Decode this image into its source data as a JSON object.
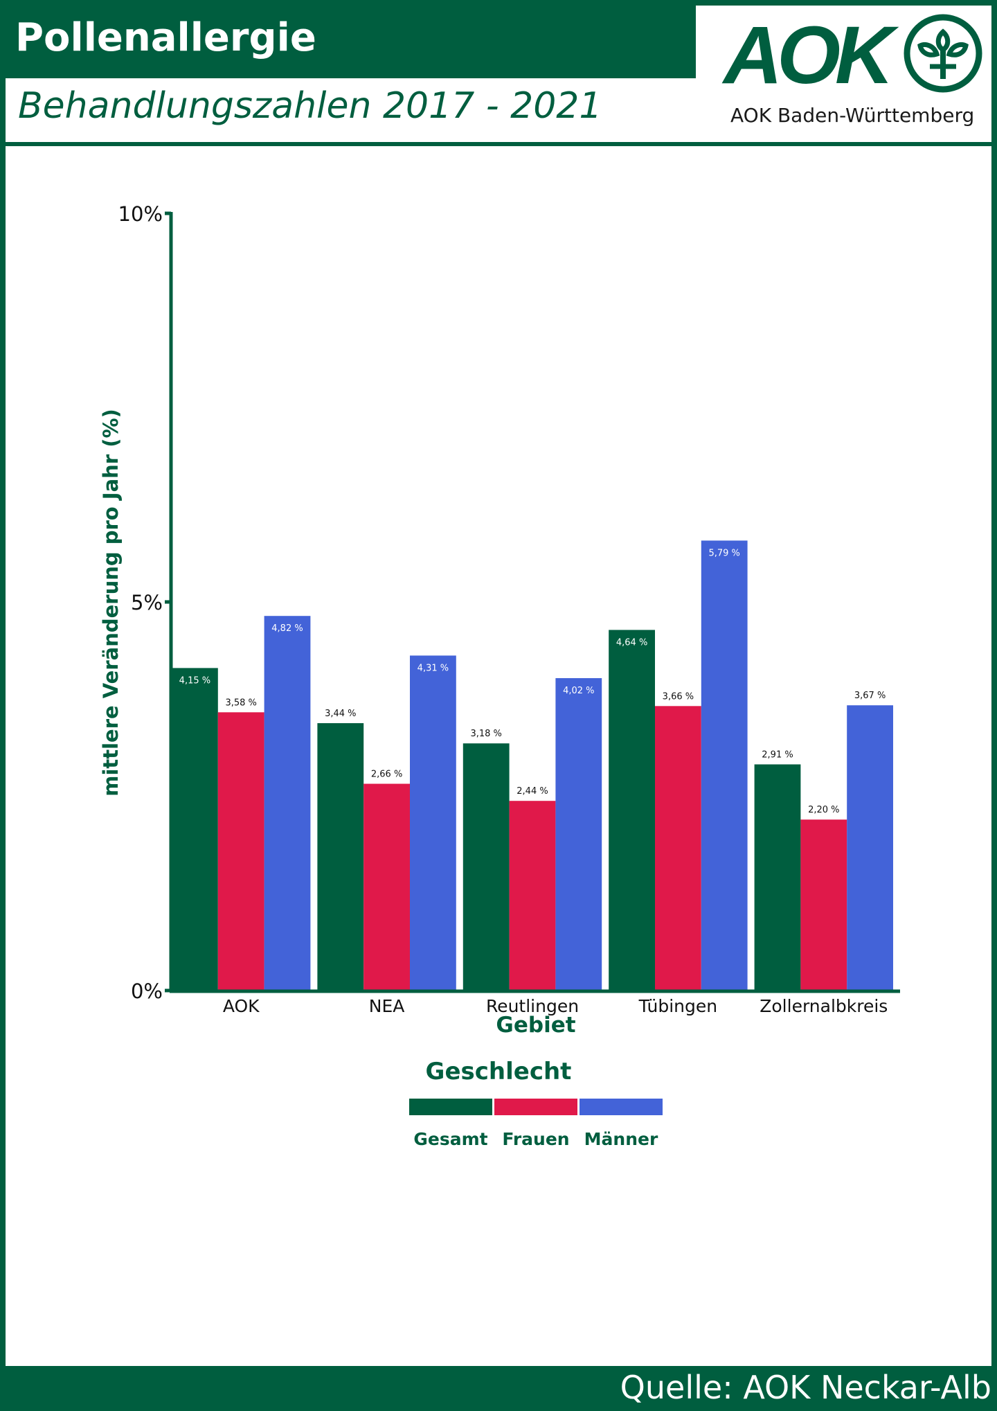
{
  "header": {
    "title": "Pollenallergie",
    "subtitle": "Behandlungszahlen 2017 - 2021"
  },
  "logo": {
    "brand": "AOK",
    "caption": "AOK Baden-Württemberg",
    "icon": "aok-tree-emblem-icon"
  },
  "footer": {
    "source": "Quelle: AOK Neckar-Alb"
  },
  "colors": {
    "brand_green": "#005e3f",
    "gesamt": "#005e3f",
    "frauen": "#e0194a",
    "maenner": "#4363d8"
  },
  "chart_data": {
    "type": "bar",
    "xlabel": "Gebiet",
    "ylabel": "mittlere Veränderung pro Jahr (%)",
    "ylim": [
      0,
      10
    ],
    "yticks": [
      "0%",
      "5%",
      "10%"
    ],
    "ytick_values": [
      0,
      5,
      10
    ],
    "categories": [
      "AOK",
      "NEA",
      "Reutlingen",
      "Tübingen",
      "Zollernalbkreis"
    ],
    "legend_title": "Geschlecht",
    "legend_position": "bottom",
    "grid": false,
    "series": [
      {
        "name": "Gesamt",
        "color": "#005e3f",
        "values": [
          4.15,
          3.44,
          3.18,
          4.64,
          2.91
        ],
        "labels": [
          "4,15 %",
          "3,44 %",
          "3,18 %",
          "4,64 %",
          "2,91 %"
        ]
      },
      {
        "name": "Frauen",
        "color": "#e0194a",
        "values": [
          3.58,
          2.66,
          2.44,
          3.66,
          2.2
        ],
        "labels": [
          "3,58 %",
          "2,66 %",
          "2,44 %",
          "3,66 %",
          "2,20 %"
        ]
      },
      {
        "name": "Männer",
        "color": "#4363d8",
        "values": [
          4.82,
          4.31,
          4.02,
          5.79,
          3.67
        ],
        "labels": [
          "4,82 %",
          "4,31 %",
          "4,02 %",
          "5,79 %",
          "3,67 %"
        ]
      }
    ]
  }
}
